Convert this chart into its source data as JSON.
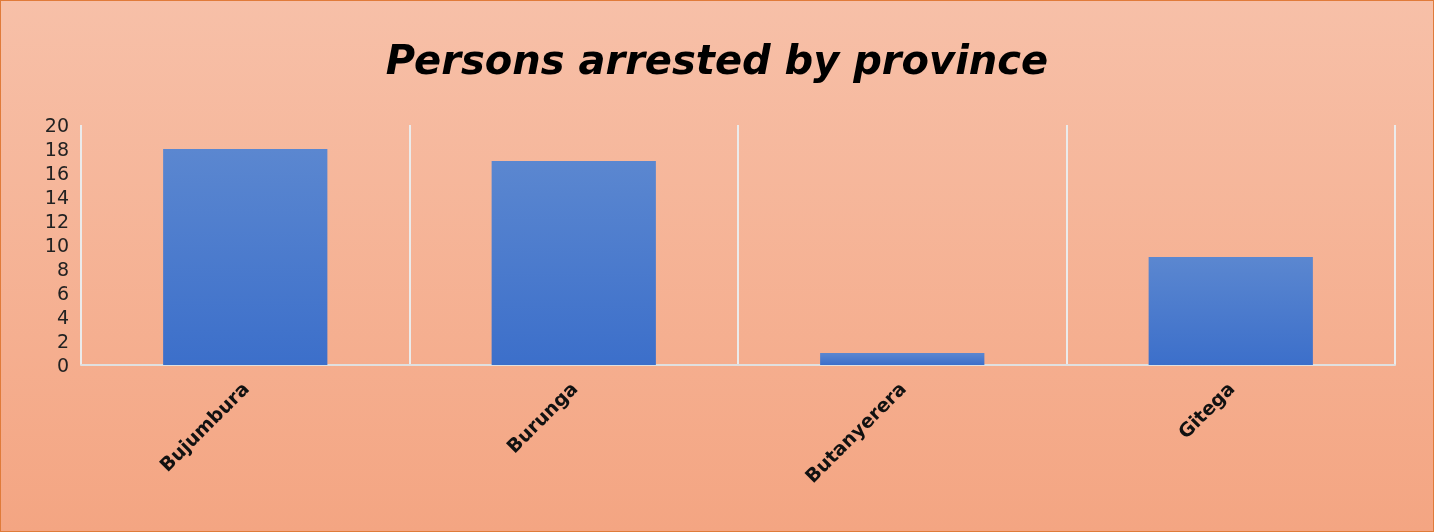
{
  "chart_data": {
    "type": "bar",
    "title": "Persons arrested by province",
    "categories": [
      "Bujumbura",
      "Burunga",
      "Butanyerera",
      "Gitega"
    ],
    "values": [
      18,
      17,
      1,
      9
    ],
    "color": "#3c6fca",
    "ylim": [
      0,
      20
    ],
    "yticks": [
      0,
      2,
      4,
      6,
      8,
      10,
      12,
      14,
      16,
      18,
      20
    ],
    "grid": "x"
  }
}
